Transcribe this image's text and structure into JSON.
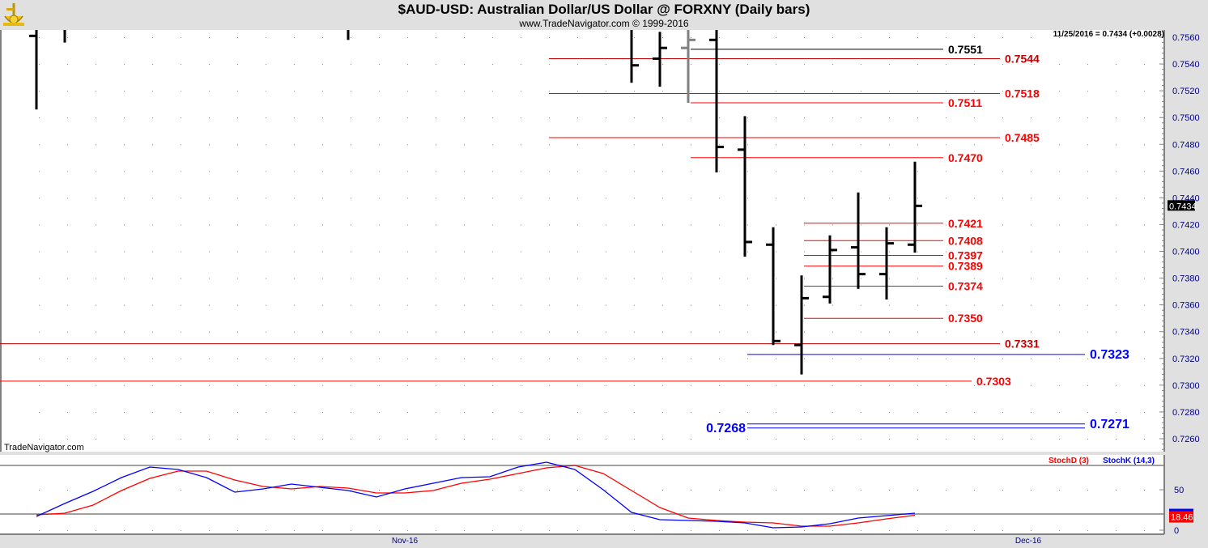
{
  "header": {
    "title": "$AUD-USD:  Australian Dollar/US Dollar @ FORXNY  (Daily bars)",
    "subtitle": "www.TradeNavigator.com © 1999-2016",
    "logo": "trade-navigator-sextant-logo"
  },
  "watermark": "TradeNavigator.com",
  "readout": "11/25/2016 = 0.7434 (+0.0028)",
  "colors": {
    "bar": "#000000",
    "bar_highlight": "#808080",
    "red": "#ff0000",
    "dark_red": "#c00000",
    "blue": "#0000ff",
    "axis_text": "#000080"
  },
  "chart_data": [
    {
      "type": "ohlc",
      "title": "$AUD-USD:  Australian Dollar/US Dollar @ FORXNY  (Daily bars)",
      "ylim": [
        0.725,
        0.757
      ],
      "y_ticks": [
        "0.7560",
        "0.7540",
        "0.7520",
        "0.7500",
        "0.7480",
        "0.7460",
        "0.7440",
        "0.7420",
        "0.7400",
        "0.7380",
        "0.7360",
        "0.7340",
        "0.7320",
        "0.7300",
        "0.7280",
        "0.7260"
      ],
      "x_ticks": [
        {
          "label": "Nov-16",
          "date": "2016-11-01"
        },
        {
          "label": "Dec-16",
          "date": "2016-12-01"
        }
      ],
      "last_price_label": "0.7434",
      "last_price": 0.7434,
      "bars": [
        {
          "date": "2016-10-13",
          "open": 0.7561,
          "low": 0.7506
        },
        {
          "date": "2016-10-14",
          "low": 0.7556
        },
        {
          "date": "2016-10-28",
          "low": 0.7558
        },
        {
          "date": "2016-11-11",
          "low": 0.7526,
          "close": 0.7539
        },
        {
          "date": "2016-11-14",
          "open": 0.7544,
          "high": 0.7564,
          "low": 0.7523,
          "close": 0.7552
        },
        {
          "date": "2016-11-15",
          "open": 0.7552,
          "low": 0.7511,
          "close": 0.7558,
          "highlight": true
        },
        {
          "date": "2016-11-16",
          "open": 0.7558,
          "low": 0.7459,
          "close": 0.7478
        },
        {
          "date": "2016-11-17",
          "open": 0.7476,
          "high": 0.7501,
          "low": 0.7396,
          "close": 0.7407
        },
        {
          "date": "2016-11-18",
          "open": 0.7405,
          "high": 0.7418,
          "low": 0.733,
          "close": 0.7333
        },
        {
          "date": "2016-11-21",
          "open": 0.733,
          "high": 0.7382,
          "low": 0.7308,
          "close": 0.7365
        },
        {
          "date": "2016-11-22",
          "open": 0.7366,
          "high": 0.7412,
          "low": 0.7361,
          "close": 0.7401
        },
        {
          "date": "2016-11-23",
          "open": 0.7403,
          "high": 0.7444,
          "low": 0.7372,
          "close": 0.7383
        },
        {
          "date": "2016-11-24",
          "open": 0.7383,
          "high": 0.7418,
          "low": 0.7364,
          "close": 0.7406
        },
        {
          "date": "2016-11-25",
          "open": 0.7405,
          "high": 0.7467,
          "low": 0.7399,
          "close": 0.7434
        }
      ],
      "levels": [
        {
          "value": 0.7551,
          "label": "0.7551",
          "color": "#000000",
          "label_color": "#000000"
        },
        {
          "value": 0.7544,
          "label": "0.7544",
          "color": "#c00000",
          "label_color": "#c00000"
        },
        {
          "value": 0.7518,
          "label": "0.7518",
          "color": "#ff0000",
          "label_color": "#ff0000"
        },
        {
          "value": 0.7511,
          "label": "0.7511",
          "color": "#ff0000",
          "label_color": "#ff0000"
        },
        {
          "value": 0.7485,
          "label": "0.7485",
          "color": "#ff0000",
          "label_color": "#ff0000"
        },
        {
          "value": 0.747,
          "label": "0.7470",
          "color": "#ff0000",
          "label_color": "#ff0000"
        },
        {
          "value": 0.7421,
          "label": "0.7421",
          "color": "#ff0000",
          "label_color": "#ff0000"
        },
        {
          "value": 0.7408,
          "label": "0.7408",
          "color": "#ff0000",
          "label_color": "#ff0000"
        },
        {
          "value": 0.7397,
          "label": "0.7397",
          "color": "#ff0000",
          "label_color": "#ff0000"
        },
        {
          "value": 0.7389,
          "label": "0.7389",
          "color": "#ff0000",
          "label_color": "#ff0000"
        },
        {
          "value": 0.7374,
          "label": "0.7374",
          "color": "#ff0000",
          "label_color": "#ff0000"
        },
        {
          "value": 0.735,
          "label": "0.7350",
          "color": "#ff0000",
          "label_color": "#ff0000"
        },
        {
          "value": 0.7331,
          "label": "0.7331",
          "color": "#c00000",
          "label_color": "#c00000"
        },
        {
          "value": 0.7323,
          "label": "0.7323",
          "color": "#0000ff",
          "label_color": "#0000ff"
        },
        {
          "value": 0.7303,
          "label": "0.7303",
          "color": "#ff0000",
          "label_color": "#ff0000"
        },
        {
          "value": 0.7271,
          "label": "0.7271",
          "color": "#0000ff",
          "label_color": "#0000ff"
        },
        {
          "value": 0.7268,
          "label": "0.7268",
          "color": "#0000ff",
          "label_color": "#0000ff"
        }
      ]
    },
    {
      "type": "line",
      "ylim": [
        0,
        100
      ],
      "y_ticks": [
        "50",
        "0"
      ],
      "reference_lines": [
        20,
        80
      ],
      "last_value_label": "18.46",
      "x": [
        "2016-10-13",
        "2016-10-14",
        "2016-10-17",
        "2016-10-18",
        "2016-10-19",
        "2016-10-20",
        "2016-10-21",
        "2016-10-24",
        "2016-10-25",
        "2016-10-26",
        "2016-10-27",
        "2016-10-28",
        "2016-10-31",
        "2016-11-01",
        "2016-11-02",
        "2016-11-03",
        "2016-11-04",
        "2016-11-07",
        "2016-11-08",
        "2016-11-09",
        "2016-11-10",
        "2016-11-11",
        "2016-11-14",
        "2016-11-15",
        "2016-11-16",
        "2016-11-17",
        "2016-11-18",
        "2016-11-21",
        "2016-11-22",
        "2016-11-23",
        "2016-11-24",
        "2016-11-25"
      ],
      "series": [
        {
          "name": "StochD (3)",
          "color": "#ff0000",
          "values": [
            19,
            21,
            31,
            49,
            64,
            73,
            73,
            62,
            54,
            51,
            54,
            52,
            46,
            46,
            49,
            58,
            63,
            70,
            77,
            80,
            70,
            49,
            28,
            15,
            12,
            10,
            9,
            5,
            5,
            9,
            14,
            18.46
          ]
        },
        {
          "name": "StochK (14,3)",
          "color": "#0000ff",
          "values": [
            17,
            33,
            48,
            65,
            78,
            75,
            65,
            47,
            51,
            57,
            53,
            49,
            41,
            51,
            58,
            65,
            66,
            78,
            84,
            75,
            50,
            22,
            13,
            12,
            11,
            9,
            3,
            4,
            8,
            15,
            18,
            21
          ]
        }
      ]
    }
  ]
}
